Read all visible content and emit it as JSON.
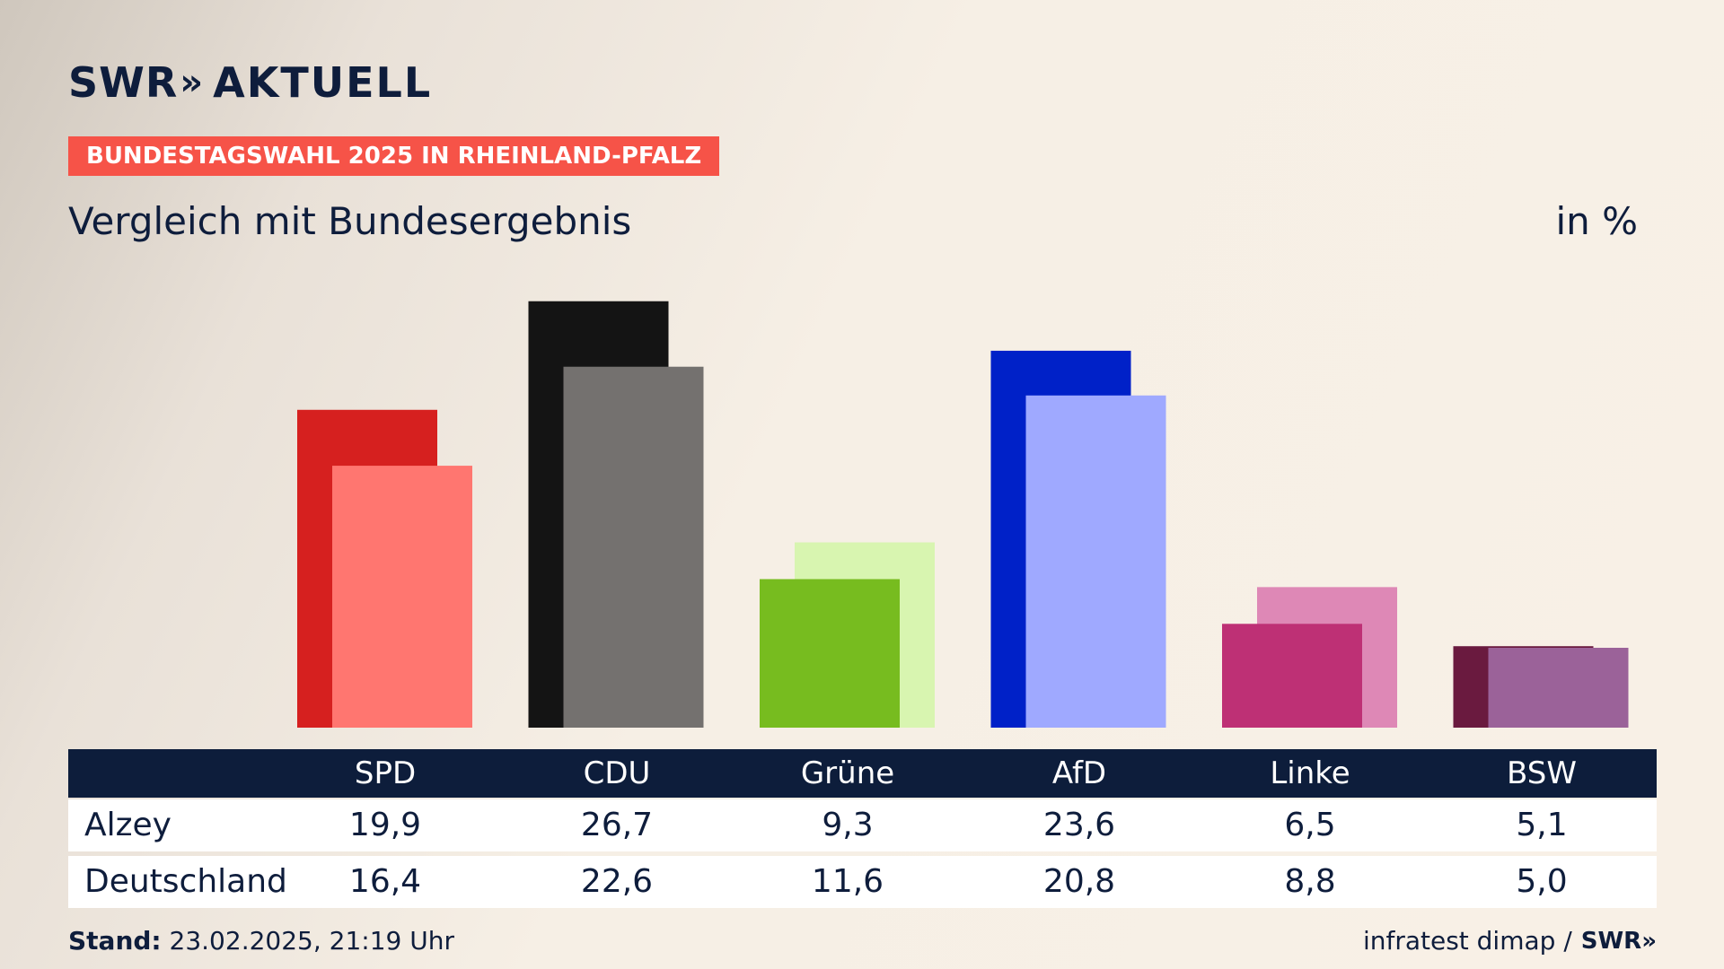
{
  "brand": {
    "swr": "SWR",
    "chevrons": "»",
    "aktuell": "AKTUELL"
  },
  "badge": "BUNDESTAGSWAHL 2025 IN RHEINLAND-PFALZ",
  "subtitle": "Vergleich mit Bundesergebnis",
  "unit": "in %",
  "chart_data": {
    "type": "bar",
    "categories": [
      "SPD",
      "CDU",
      "Grüne",
      "AfD",
      "Linke",
      "BSW"
    ],
    "series": [
      {
        "name": "Alzey",
        "values": [
          19.9,
          26.7,
          9.3,
          23.6,
          6.5,
          5.1
        ]
      },
      {
        "name": "Deutschland",
        "values": [
          16.4,
          22.6,
          11.6,
          20.8,
          8.8,
          5.0
        ]
      }
    ],
    "colors_primary": [
      "#d6201f",
      "#141414",
      "#77bc1f",
      "#0021c8",
      "#be3075",
      "#6a1a3f"
    ],
    "colors_secondary": [
      "#ff7670",
      "#74716f",
      "#d8f5b0",
      "#9fa9ff",
      "#de88b6",
      "#9b6299"
    ],
    "ylim": [
      0,
      30
    ]
  },
  "table": {
    "headers": [
      "SPD",
      "CDU",
      "Grüne",
      "AfD",
      "Linke",
      "BSW"
    ],
    "rows": [
      {
        "label": "Alzey",
        "values": [
          "19,9",
          "26,7",
          "9,3",
          "23,6",
          "6,5",
          "5,1"
        ]
      },
      {
        "label": "Deutschland",
        "values": [
          "16,4",
          "22,6",
          "11,6",
          "20,8",
          "8,8",
          "5,0"
        ]
      }
    ]
  },
  "footer": {
    "stand_label": "Stand:",
    "stand_value": "23.02.2025, 21:19 Uhr",
    "source": "infratest dimap /",
    "source_logo": "SWR»"
  }
}
